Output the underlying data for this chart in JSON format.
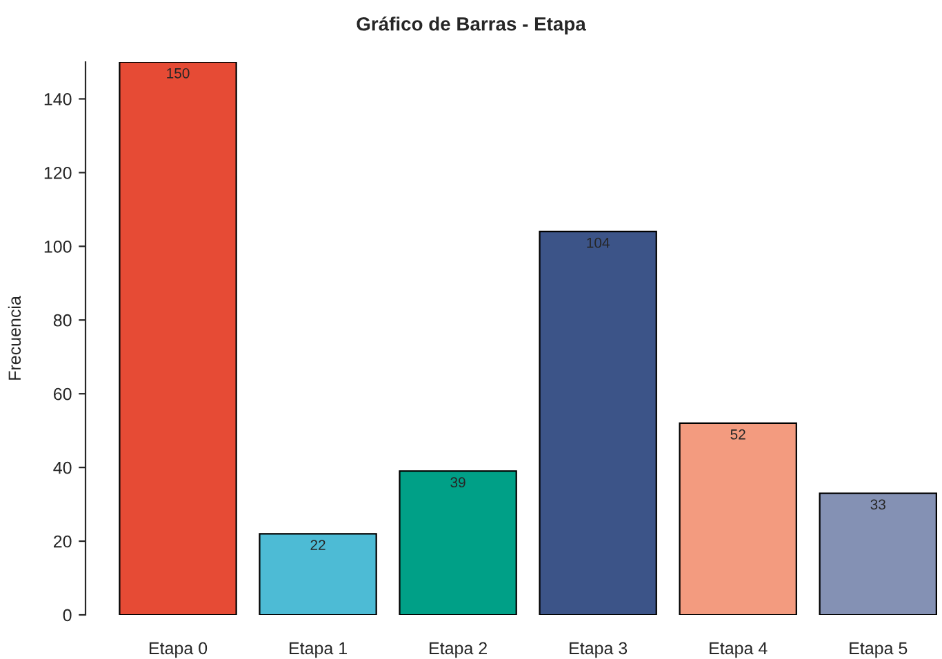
{
  "chart_data": {
    "type": "bar",
    "title": "Gráfico de Barras - Etapa",
    "ylabel": "Frecuencia",
    "categories": [
      "Etapa 0",
      "Etapa 1",
      "Etapa 2",
      "Etapa 3",
      "Etapa 4",
      "Etapa 5"
    ],
    "values": [
      150,
      22,
      39,
      104,
      52,
      33
    ],
    "colors": [
      "#e64b35",
      "#4dbbd5",
      "#00a087",
      "#3c5488",
      "#f39b7f",
      "#8491b4"
    ],
    "ylim": [
      0,
      150
    ],
    "yticks": [
      0,
      20,
      40,
      60,
      80,
      100,
      120,
      140
    ],
    "data_labels": true,
    "grid": false,
    "legend": false
  }
}
